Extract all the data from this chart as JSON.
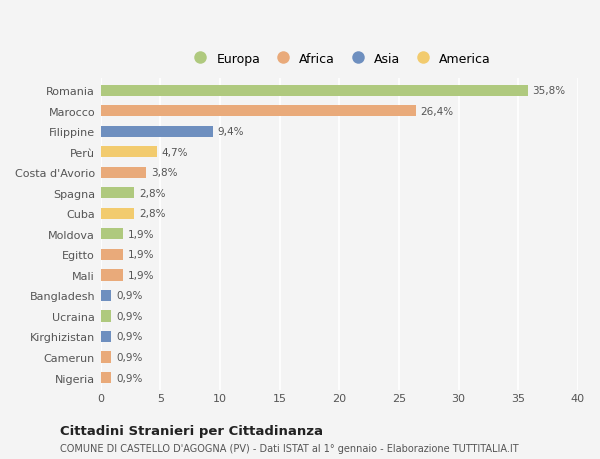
{
  "title": "Cittadini Stranieri per Cittadinanza",
  "subtitle": "COMUNE DI CASTELLO D'AGOGNA (PV) - Dati ISTAT al 1° gennaio - Elaborazione TUTTITALIA.IT",
  "countries": [
    "Romania",
    "Marocco",
    "Filippine",
    "Perù",
    "Costa d'Avorio",
    "Spagna",
    "Cuba",
    "Moldova",
    "Egitto",
    "Mali",
    "Bangladesh",
    "Ucraina",
    "Kirghizistan",
    "Camerun",
    "Nigeria"
  ],
  "values": [
    35.8,
    26.4,
    9.4,
    4.7,
    3.8,
    2.8,
    2.8,
    1.9,
    1.9,
    1.9,
    0.9,
    0.9,
    0.9,
    0.9,
    0.9
  ],
  "labels": [
    "35,8%",
    "26,4%",
    "9,4%",
    "4,7%",
    "3,8%",
    "2,8%",
    "2,8%",
    "1,9%",
    "1,9%",
    "1,9%",
    "0,9%",
    "0,9%",
    "0,9%",
    "0,9%",
    "0,9%"
  ],
  "continents": [
    "Europa",
    "Africa",
    "Asia",
    "America",
    "Africa",
    "Europa",
    "America",
    "Europa",
    "Africa",
    "Africa",
    "Asia",
    "Europa",
    "Asia",
    "Africa",
    "Africa"
  ],
  "colors": {
    "Europa": "#afc97e",
    "Africa": "#e9aa7a",
    "Asia": "#6e8fbf",
    "America": "#f2cb6e"
  },
  "xlim": [
    0,
    40
  ],
  "xticks": [
    0,
    5,
    10,
    15,
    20,
    25,
    30,
    35,
    40
  ],
  "background_color": "#f4f4f4",
  "grid_color": "#ffffff",
  "bar_height": 0.55
}
